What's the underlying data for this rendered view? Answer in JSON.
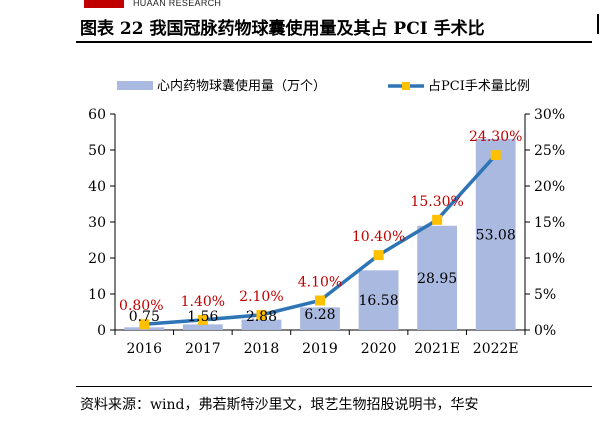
{
  "header": {
    "brand": "HUAAN RESEARCH",
    "figure_title": "图表 22 我国冠脉药物球囊使用量及其占 PCI 手术比"
  },
  "chart_data": {
    "type": "bar+line",
    "categories": [
      "2016",
      "2017",
      "2018",
      "2019",
      "2020",
      "2021E",
      "2022E"
    ],
    "series": [
      {
        "name": "心内药物球囊使用量（万个）",
        "kind": "bar",
        "axis": "left",
        "values": [
          0.75,
          1.56,
          2.88,
          6.28,
          16.58,
          28.95,
          53.08
        ],
        "labels": [
          "0.75",
          "1.56",
          "2.88",
          "6.28",
          "16.58",
          "28.95",
          "53.08"
        ]
      },
      {
        "name": "占PCI手术量比例",
        "kind": "line",
        "axis": "right",
        "values": [
          0.8,
          1.4,
          2.1,
          4.1,
          10.4,
          15.3,
          24.3
        ],
        "labels": [
          "0.80%",
          "1.40%",
          "2.10%",
          "4.10%",
          "10.40%",
          "15.30%",
          "24.30%"
        ]
      }
    ],
    "y_left": {
      "ylim": [
        0,
        60
      ],
      "ticks": [
        "0",
        "10",
        "20",
        "30",
        "40",
        "50",
        "60"
      ]
    },
    "y_right": {
      "ylim": [
        0,
        30
      ],
      "ticks": [
        "0%",
        "5%",
        "10%",
        "15%",
        "20%",
        "25%",
        "30%"
      ]
    },
    "grid": false,
    "legend": "top",
    "colors": {
      "bar": "#a9b9e0",
      "line": "#2e75b6",
      "marker": "#ffc000",
      "line_label": "#c00000",
      "bar_label": "#000000"
    }
  },
  "footer": {
    "source": "资料来源：wind，弗若斯特沙里文，垠艺生物招股说明书，华安"
  }
}
